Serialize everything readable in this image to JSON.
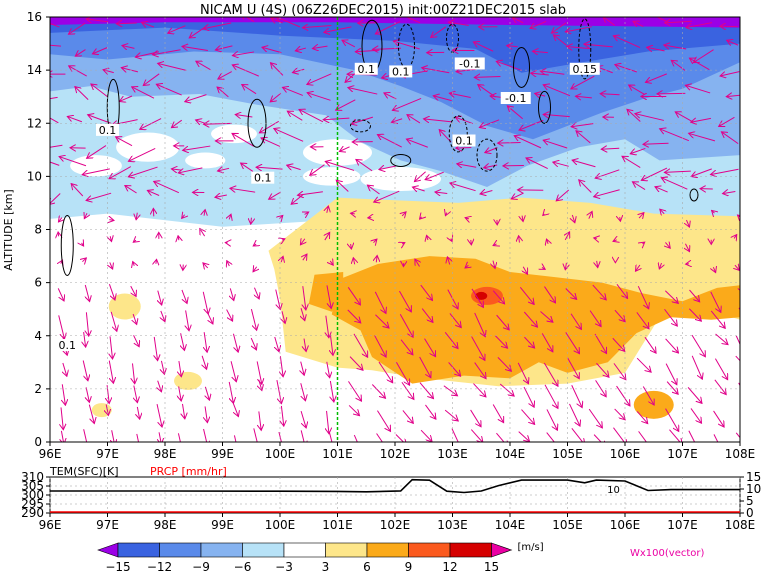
{
  "colors": {
    "neg_dark": "#9b00e6",
    "neg_15": "#3a63e0",
    "neg_12": "#5a8aea",
    "neg_9": "#86b3f0",
    "neg_6": "#b7e2f7",
    "neutral": "#ffffff",
    "pos_3": "#fde68a",
    "pos_6": "#fbaa1a",
    "pos_9": "#fb5a1e",
    "pos_12": "#d50000",
    "pos_15": "#ea00a3",
    "vector": "#e0008a",
    "contour": "#000000",
    "prcp": "#ff0000",
    "longitude_marker": "#00bb00"
  },
  "chart_data": [
    {
      "type": "heatmap",
      "title": "NICAM U (4S) (06Z26DEC2015) init:00Z21DEC2015 slab",
      "xlabel": "",
      "ylabel": "ALTITUDE [km]",
      "x_ticks": [
        "96E",
        "97E",
        "98E",
        "99E",
        "100E",
        "101E",
        "102E",
        "103E",
        "104E",
        "105E",
        "106E",
        "107E",
        "108E"
      ],
      "y_ticks": [
        "0",
        "2",
        "4",
        "6",
        "8",
        "10",
        "12",
        "14",
        "16"
      ],
      "xlim": [
        96,
        108
      ],
      "ylim": [
        0,
        16
      ],
      "contour_labels": [
        {
          "text": "0.1",
          "lon": 101.5,
          "alt": 13.9
        },
        {
          "text": "0.1",
          "lon": 102.1,
          "alt": 13.8
        },
        {
          "text": "-0.1",
          "lon": 103.3,
          "alt": 14.1
        },
        {
          "text": "0.15",
          "lon": 105.3,
          "alt": 13.9
        },
        {
          "text": "-0.1",
          "lon": 104.1,
          "alt": 12.8
        },
        {
          "text": "0.1",
          "lon": 97.0,
          "alt": 11.6
        },
        {
          "text": "0.1",
          "lon": 103.2,
          "alt": 11.2
        },
        {
          "text": "0.1",
          "lon": 99.7,
          "alt": 9.8
        },
        {
          "text": "0.1",
          "lon": 96.3,
          "alt": 3.5
        }
      ],
      "marker_longitude": 101.0
    },
    {
      "type": "line",
      "title": "",
      "legend": [
        "TEM(SFC)[K]",
        "PRCP [mm/hr]"
      ],
      "x_ticks": [
        "96E",
        "97E",
        "98E",
        "99E",
        "100E",
        "101E",
        "102E",
        "103E",
        "104E",
        "105E",
        "106E",
        "107E",
        "108E"
      ],
      "y_ticks_left": [
        "290",
        "295",
        "300",
        "305",
        "310"
      ],
      "y_ticks_right": [
        "0",
        "5",
        "10",
        "15"
      ],
      "xlim": [
        96,
        108
      ],
      "ylim_left": [
        290,
        310
      ],
      "ylim_right": [
        0,
        15
      ],
      "series": [
        {
          "name": "TEM(SFC)[K]",
          "x": [
            96,
            98,
            100,
            101,
            101.5,
            102.1,
            102.3,
            102.6,
            102.9,
            103.2,
            103.5,
            103.8,
            104.2,
            105.0,
            105.3,
            105.5,
            106.0,
            106.4,
            106.8,
            108.0
          ],
          "y": [
            302.2,
            302.2,
            302.1,
            302.0,
            301.8,
            302.3,
            308.5,
            308.2,
            302.1,
            301.4,
            302.2,
            305.2,
            308.3,
            308.3,
            306.8,
            308.3,
            307.8,
            302.5,
            303.0,
            303.0
          ]
        },
        {
          "name": "PRCP [mm/hr]",
          "x": [
            96,
            108
          ],
          "y": [
            0,
            0
          ]
        }
      ],
      "annotations": [
        {
          "text": "10",
          "lon": 105.8,
          "value": 10
        }
      ]
    }
  ],
  "colorbar": {
    "labels": [
      "-15",
      "-12",
      "-9",
      "-6",
      "-3",
      "3",
      "6",
      "9",
      "12",
      "15"
    ],
    "unit": "[m/s]",
    "vector_label": "Wx100(vector)"
  }
}
